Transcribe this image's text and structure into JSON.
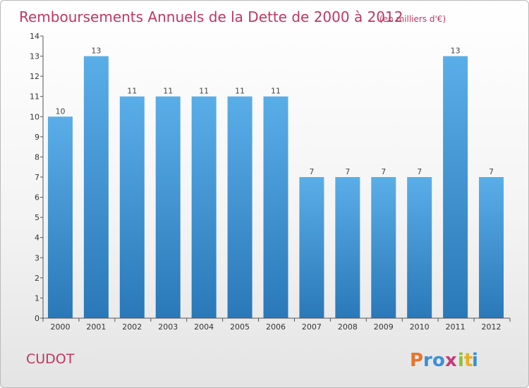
{
  "chart_data": {
    "type": "bar",
    "title": "Remboursements Annuels de la Dette de 2000 à 2012",
    "unit": "(en milliers d'€)",
    "categories": [
      "2000",
      "2001",
      "2002",
      "2003",
      "2004",
      "2005",
      "2006",
      "2007",
      "2008",
      "2009",
      "2010",
      "2011",
      "2012"
    ],
    "values": [
      10,
      13,
      11,
      11,
      11,
      11,
      11,
      7,
      7,
      7,
      7,
      13,
      7
    ],
    "data_labels": [
      "10",
      "13",
      "11",
      "11",
      "11",
      "11",
      "11",
      "7",
      "7",
      "7",
      "7",
      "13",
      "7"
    ],
    "ylim": [
      0,
      14
    ],
    "yticks": [
      "0",
      "1",
      "2",
      "3",
      "4",
      "5",
      "6",
      "7",
      "8",
      "9",
      "10",
      "11",
      "12",
      "13",
      "14"
    ],
    "grid": false,
    "legend": "none"
  },
  "commune": "CUDOT",
  "logo": {
    "letters": [
      "P",
      "r",
      "o",
      "x",
      "i",
      "t",
      "i"
    ],
    "colors": [
      "#e8752a",
      "#3a8fd6",
      "#3a8fd6",
      "#c93a7a",
      "#8bbf3a",
      "#e8b020",
      "#3a8fd6"
    ]
  },
  "colors": {
    "bar_top": "#5aaee8",
    "bar_bottom": "#2a78b8",
    "title": "#c0365f"
  }
}
